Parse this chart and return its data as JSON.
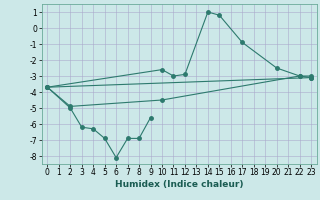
{
  "title": "",
  "xlabel": "Humidex (Indice chaleur)",
  "background_color": "#cce8e8",
  "grid_color": "#aaaacc",
  "line_color": "#2d7a6e",
  "xlim": [
    -0.5,
    23.5
  ],
  "ylim": [
    -8.5,
    1.5
  ],
  "yticks": [
    1,
    0,
    -1,
    -2,
    -3,
    -4,
    -5,
    -6,
    -7,
    -8
  ],
  "xticks": [
    0,
    1,
    2,
    3,
    4,
    5,
    6,
    7,
    8,
    9,
    10,
    11,
    12,
    13,
    14,
    15,
    16,
    17,
    18,
    19,
    20,
    21,
    22,
    23
  ],
  "series": [
    {
      "x": [
        0,
        10,
        11,
        12,
        14,
        15,
        17,
        20,
        22,
        23
      ],
      "y": [
        -3.7,
        -2.6,
        -3.0,
        -2.9,
        1.0,
        0.8,
        -0.9,
        -2.5,
        -3.0,
        -3.1
      ]
    },
    {
      "x": [
        0,
        2,
        10,
        22,
        23
      ],
      "y": [
        -3.7,
        -4.9,
        -4.5,
        -3.0,
        -3.0
      ]
    },
    {
      "x": [
        0,
        2,
        3,
        4,
        5,
        6,
        7,
        8,
        9
      ],
      "y": [
        -3.7,
        -5.0,
        -6.2,
        -6.3,
        -6.9,
        -8.1,
        -6.9,
        -6.9,
        -5.6
      ]
    },
    {
      "x": [
        0,
        23
      ],
      "y": [
        -3.7,
        -3.1
      ]
    }
  ],
  "marker_size": 2.5,
  "linewidth": 0.8,
  "xlabel_fontsize": 6.5,
  "tick_fontsize": 5.5
}
